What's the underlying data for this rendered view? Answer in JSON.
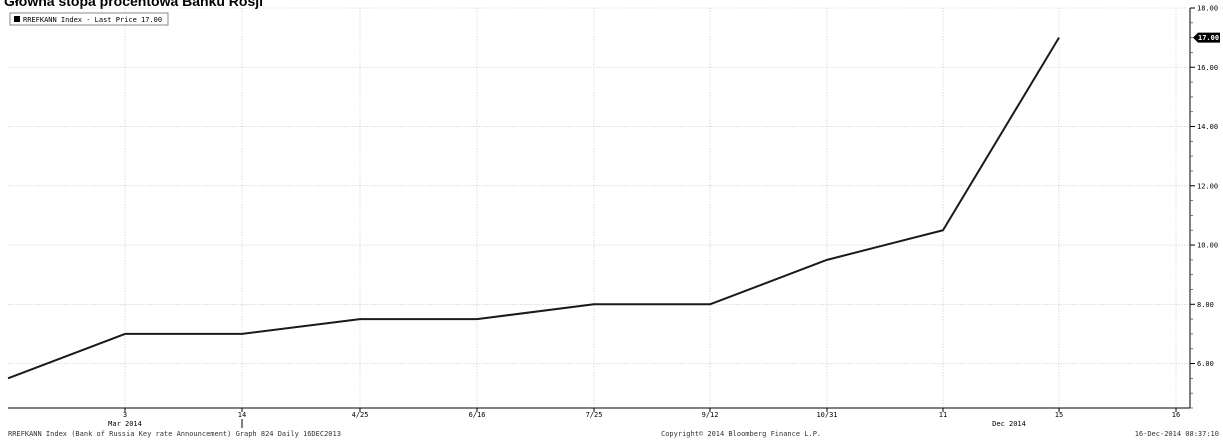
{
  "chart_data": {
    "type": "line",
    "title": "Główna stopa procentowa Banku Rosji",
    "legend": {
      "label": "RREFKANN Index - Last Price 17.00",
      "position": "top-left"
    },
    "x": [
      "3",
      "14",
      "4/25",
      "6/16",
      "7/25",
      "9/12",
      "10/31",
      "11",
      "15",
      "16"
    ],
    "x_sublabels": [
      {
        "tick": "3",
        "label": "Mar 2014"
      },
      {
        "tick": "15",
        "label": "Dec 2014"
      }
    ],
    "series": [
      {
        "name": "RREFKANN Index - Last Price",
        "color": "#1a1a1a",
        "points": [
          {
            "x": "start",
            "y": 5.5
          },
          {
            "x": "3",
            "y": 7.0
          },
          {
            "x": "14",
            "y": 7.0
          },
          {
            "x": "4/25",
            "y": 7.5
          },
          {
            "x": "6/16",
            "y": 7.5
          },
          {
            "x": "7/25",
            "y": 8.0
          },
          {
            "x": "9/12",
            "y": 8.0
          },
          {
            "x": "10/31",
            "y": 9.5
          },
          {
            "x": "11",
            "y": 10.5
          },
          {
            "x": "15",
            "y": 17.0
          }
        ]
      }
    ],
    "y_ticks": [
      "6.00",
      "8.00",
      "10.00",
      "12.00",
      "14.00",
      "16.00",
      "18.00"
    ],
    "ylim": [
      4.5,
      18.0
    ],
    "y_axis_side": "right",
    "last_price_label": "17.00",
    "grid": true
  },
  "footer": {
    "left": "RREFKANN Index (Bank of Russia Key rate Announcement) Graph 824  Daily 16DEC2013",
    "center": "Copyright© 2014 Bloomberg Finance L.P.",
    "right": "16-Dec-2014 08:37:10"
  }
}
